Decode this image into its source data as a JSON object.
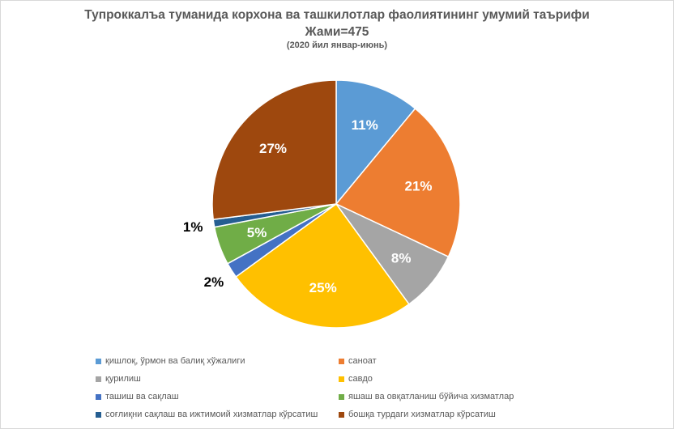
{
  "chart_data": {
    "type": "pie",
    "title": "Тупроккалъа туманида корхона ва ташкилотлар фаолиятининг умумий таърифи",
    "title_line2": "Жами=475",
    "subtitle": "(2020 йил январ-июнь)",
    "slices": [
      {
        "label": "қишлоқ, ўрмон ва балиқ хўжалиги",
        "value": 11,
        "display": "11%",
        "color": "#5b9bd5"
      },
      {
        "label": "саноат",
        "value": 21,
        "display": "21%",
        "color": "#ed7d31"
      },
      {
        "label": "қурилиш",
        "value": 8,
        "display": "8%",
        "color": "#a5a5a5"
      },
      {
        "label": "савдо",
        "value": 25,
        "display": "25%",
        "color": "#ffc000"
      },
      {
        "label": "ташиш ва сақлаш",
        "value": 2,
        "display": "2%",
        "color": "#4472c4"
      },
      {
        "label": "яшаш ва овқатланиш бўйича хизматлар",
        "value": 5,
        "display": "5%",
        "color": "#70ad47"
      },
      {
        "label": "соғлиқни сақлаш ва ижтимоий хизматлар кўрсатиш",
        "value": 1,
        "display": "1%",
        "color": "#255e91"
      },
      {
        "label": "бошқа турдаги хизматлар кўрсатиш",
        "value": 27,
        "display": "27%",
        "color": "#9e480e"
      }
    ],
    "legend_position": "bottom"
  }
}
